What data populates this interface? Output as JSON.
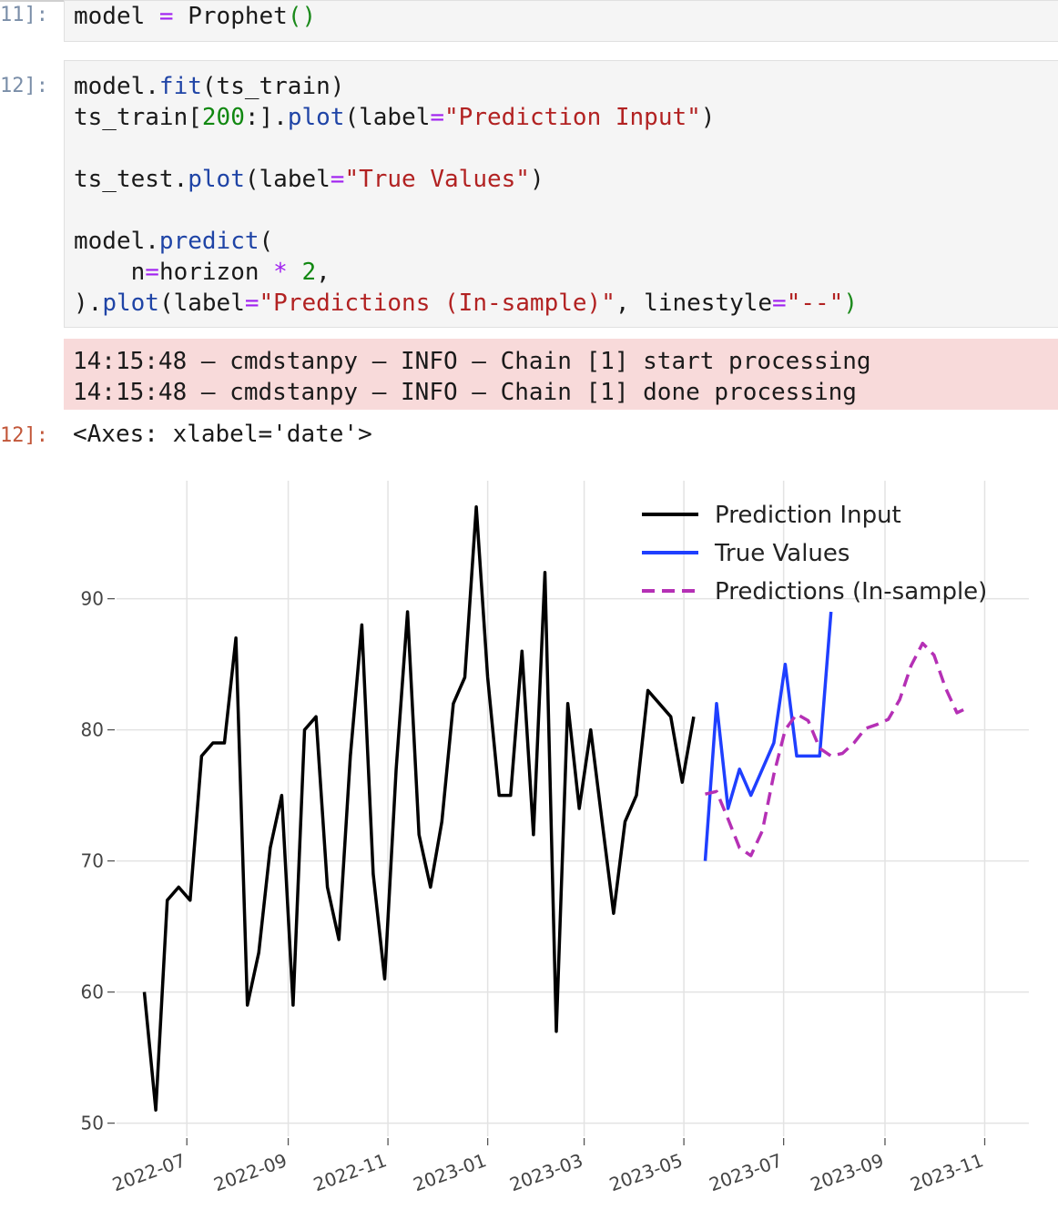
{
  "cells": {
    "cell11": {
      "prompt": "11]:",
      "line1": {
        "a": "model ",
        "b": "=",
        "c": " Prophet",
        "d": "()"
      }
    },
    "cell12": {
      "prompt": "12]:",
      "l1": {
        "a": "model.",
        "b": "fit",
        "c": "(ts_train)"
      },
      "l2": {
        "a": "ts_train[",
        "b": "200",
        "c": ":].",
        "d": "plot",
        "e": "(label",
        "f": "=",
        "g": "\"Prediction Input\"",
        "h": ")"
      },
      "l3": {
        "a": "ts_test.",
        "b": "plot",
        "c": "(label",
        "d": "=",
        "e": "\"True Values\"",
        "f": ")"
      },
      "l4": {
        "a": "model.",
        "b": "predict",
        "c": "("
      },
      "l5": {
        "a": "    n",
        "b": "=",
        "c": "horizon ",
        "d": "*",
        "e": " ",
        "f": "2",
        "g": ","
      },
      "l6": {
        "a": ").",
        "b": "plot",
        "c": "(label",
        "d": "=",
        "e": "\"Predictions (In-sample)\"",
        "f": ", linestyle",
        "g": "=",
        "h": "\"--\"",
        "i": ")"
      }
    },
    "stderr": [
      "14:15:48 – cmdstanpy – INFO – Chain [1] start processing",
      "14:15:48 – cmdstanpy – INFO – Chain [1] done processing"
    ],
    "output_prompt": "12]:",
    "output_text": "<Axes: xlabel='date'>"
  },
  "chart_data": {
    "type": "line",
    "xlabel": "",
    "ylabel": "",
    "ylim": [
      49,
      99
    ],
    "xlim": [
      "2022-05-19",
      "2023-11-28"
    ],
    "grid": true,
    "legend_position": "top-right",
    "yticks": [
      50,
      60,
      70,
      80,
      90
    ],
    "xticks": [
      "2022-07",
      "2022-09",
      "2022-11",
      "2023-01",
      "2023-03",
      "2023-05",
      "2023-07",
      "2023-09",
      "2023-11"
    ],
    "series": [
      {
        "name": "Prediction Input",
        "color": "#000000",
        "style": "solid",
        "x": [
          "2022-06-05",
          "2022-06-12",
          "2022-06-19",
          "2022-06-26",
          "2022-07-03",
          "2022-07-10",
          "2022-07-17",
          "2022-07-24",
          "2022-07-31",
          "2022-08-07",
          "2022-08-14",
          "2022-08-21",
          "2022-08-28",
          "2022-09-04",
          "2022-09-11",
          "2022-09-18",
          "2022-09-25",
          "2022-10-02",
          "2022-10-09",
          "2022-10-16",
          "2022-10-23",
          "2022-10-30",
          "2022-11-06",
          "2022-11-13",
          "2022-11-20",
          "2022-11-27",
          "2022-12-04",
          "2022-12-11",
          "2022-12-18",
          "2022-12-25",
          "2023-01-01",
          "2023-01-08",
          "2023-01-15",
          "2023-01-22",
          "2023-01-29",
          "2023-02-05",
          "2023-02-12",
          "2023-02-19",
          "2023-02-26",
          "2023-03-05",
          "2023-03-12",
          "2023-03-19",
          "2023-03-26",
          "2023-04-02",
          "2023-04-09",
          "2023-04-16",
          "2023-04-23",
          "2023-04-30",
          "2023-05-07"
        ],
        "values": [
          60,
          51,
          67,
          68,
          67,
          78,
          79,
          79,
          87,
          59,
          63,
          71,
          75,
          59,
          80,
          81,
          68,
          64,
          78,
          88,
          69,
          61,
          77,
          89,
          72,
          68,
          73,
          82,
          84,
          97,
          84,
          75,
          75,
          86,
          72,
          92,
          57,
          82,
          74,
          80,
          73,
          66,
          73,
          75,
          83,
          82,
          81,
          76,
          81
        ]
      },
      {
        "name": "True Values",
        "color": "#1f3fff",
        "style": "solid",
        "x": [
          "2023-05-14",
          "2023-05-21",
          "2023-05-28",
          "2023-06-04",
          "2023-06-11",
          "2023-06-18",
          "2023-06-25",
          "2023-07-02",
          "2023-07-09",
          "2023-07-16",
          "2023-07-23",
          "2023-07-30"
        ],
        "values": [
          70,
          82,
          74,
          77,
          75,
          77,
          79,
          85,
          78,
          78,
          78,
          89
        ]
      },
      {
        "name": "Predictions (In-sample)",
        "color": "#b530b5",
        "style": "dashed",
        "x": [
          "2023-05-14",
          "2023-05-21",
          "2023-05-28",
          "2023-06-04",
          "2023-06-11",
          "2023-06-18",
          "2023-06-25",
          "2023-07-02",
          "2023-07-09",
          "2023-07-16",
          "2023-07-23",
          "2023-07-30",
          "2023-08-06",
          "2023-08-13",
          "2023-08-20",
          "2023-08-27",
          "2023-09-03",
          "2023-09-10",
          "2023-09-17",
          "2023-09-24",
          "2023-10-01",
          "2023-10-08",
          "2023-10-15",
          "2023-10-22"
        ],
        "values": [
          75.1,
          75.3,
          73.2,
          71,
          70.4,
          72.3,
          76.6,
          80,
          81.2,
          80.7,
          78.6,
          78,
          78.2,
          79,
          80.1,
          80.4,
          80.8,
          82.3,
          84.9,
          86.6,
          85.7,
          83.2,
          81.3,
          81.7
        ]
      }
    ]
  }
}
